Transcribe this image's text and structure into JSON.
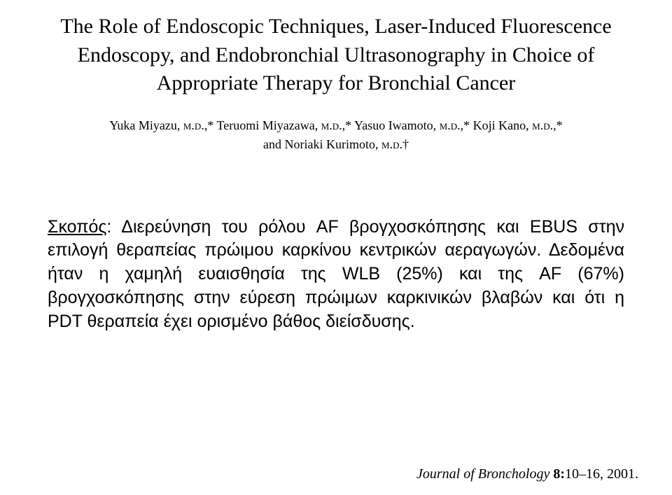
{
  "title": "The Role of Endoscopic Techniques, Laser-Induced Fluorescence Endoscopy, and Endobronchial Ultrasonography in Choice of Appropriate Therapy for Bronchial Cancer",
  "authors": {
    "a1_name": "Yuka Miyazu, ",
    "a1_deg": "m.d.,",
    "a1_mark": "* ",
    "a2_name": "Teruomi Miyazawa, ",
    "a2_deg": "m.d.,",
    "a2_mark": "* ",
    "a3_name": "Yasuo Iwamoto, ",
    "a3_deg": "m.d.,",
    "a3_mark": "* ",
    "a4_name": "Koji Kano, ",
    "a4_deg": "m.d.,",
    "a4_mark": "*",
    "line2_lead": "and ",
    "a5_name": "Noriaki Kurimoto, ",
    "a5_deg": "m.d.",
    "a5_mark": "†"
  },
  "body": {
    "purpose_label": "Σκοπός",
    "purpose_sep": ": ",
    "sentence1": "Διερεύνηση του ρόλου AF βρογχοσκόπησης και EBUS στην επιλογή θεραπείας πρώιμου καρκίνου κεντρικών αεραγωγών. ",
    "sentence2": "Δεδομένα ήταν η χαμηλή ευαισθησία της WLB (25%) και της AF (67%) βρογχοσκόπησης στην εύρεση πρώιμων καρκινικών βλαβών και ότι η PDT θεραπεία έχει ορισμένο βάθος διείσδυσης."
  },
  "journal": {
    "name": "Journal of Bronchology ",
    "vol": "8:",
    "pages": "10–16, 2001."
  }
}
